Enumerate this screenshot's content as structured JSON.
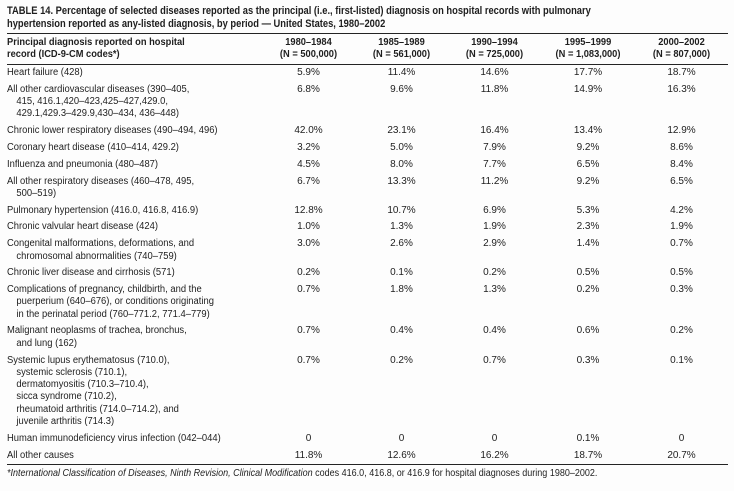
{
  "title_lines": [
    "TABLE 14. Percentage of selected diseases reported as the principal (i.e., first-listed) diagnosis on hospital records with pulmonary",
    "hypertension reported as any-listed diagnosis, by period — United States, 1980–2002"
  ],
  "header": {
    "diagnosis_lines": [
      "Principal diagnosis reported on hospital",
      "record (ICD-9-CM codes*)"
    ],
    "periods": [
      {
        "label": "1980–1984",
        "n": "(N = 500,000)"
      },
      {
        "label": "1985–1989",
        "n": "(N = 561,000)"
      },
      {
        "label": "1990–1994",
        "n": "(N = 725,000)"
      },
      {
        "label": "1995–1999",
        "n": "(N = 1,083,000)"
      },
      {
        "label": "2000–2002",
        "n": "(N = 807,000)"
      }
    ]
  },
  "table": {
    "rows": [
      {
        "label_lines": [
          "Heart failure (428)"
        ],
        "values": [
          "5.9%",
          "11.4%",
          "14.6%",
          "17.7%",
          "18.7%"
        ]
      },
      {
        "label_lines": [
          "All other cardiovascular diseases (390–405,",
          "415, 416.1,420–423,425–427,429.0,",
          "429.1,429.3–429.9,430–434, 436–448)"
        ],
        "values": [
          "6.8%",
          "9.6%",
          "11.8%",
          "14.9%",
          "16.3%"
        ]
      },
      {
        "label_lines": [
          "Chronic lower respiratory diseases (490–494, 496)"
        ],
        "values": [
          "42.0%",
          "23.1%",
          "16.4%",
          "13.4%",
          "12.9%"
        ]
      },
      {
        "label_lines": [
          "Coronary heart disease (410–414, 429.2)"
        ],
        "values": [
          "3.2%",
          "5.0%",
          "7.9%",
          "9.2%",
          "8.6%"
        ]
      },
      {
        "label_lines": [
          "Influenza and pneumonia (480–487)"
        ],
        "values": [
          "4.5%",
          "8.0%",
          "7.7%",
          "6.5%",
          "8.4%"
        ]
      },
      {
        "label_lines": [
          "All other respiratory diseases (460–478, 495,",
          "500–519)"
        ],
        "values": [
          "6.7%",
          "13.3%",
          "11.2%",
          "9.2%",
          "6.5%"
        ]
      },
      {
        "label_lines": [
          "Pulmonary hypertension (416.0, 416.8, 416.9)"
        ],
        "values": [
          "12.8%",
          "10.7%",
          "6.9%",
          "5.3%",
          "4.2%"
        ]
      },
      {
        "label_lines": [
          "Chronic valvular heart disease (424)"
        ],
        "values": [
          "1.0%",
          "1.3%",
          "1.9%",
          "2.3%",
          "1.9%"
        ]
      },
      {
        "label_lines": [
          "Congenital malformations, deformations, and",
          "chromosomal abnormalities (740–759)"
        ],
        "values": [
          "3.0%",
          "2.6%",
          "2.9%",
          "1.4%",
          "0.7%"
        ]
      },
      {
        "label_lines": [
          "Chronic liver disease and cirrhosis (571)"
        ],
        "values": [
          "0.2%",
          "0.1%",
          "0.2%",
          "0.5%",
          "0.5%"
        ]
      },
      {
        "label_lines": [
          "Complications of pregnancy, childbirth, and the",
          "puerperium (640–676), or conditions originating",
          "in the perinatal period (760–771.2, 771.4–779)"
        ],
        "values": [
          "0.7%",
          "1.8%",
          "1.3%",
          "0.2%",
          "0.3%"
        ]
      },
      {
        "label_lines": [
          "Malignant neoplasms of trachea, bronchus,",
          "and lung (162)"
        ],
        "values": [
          "0.7%",
          "0.4%",
          "0.4%",
          "0.6%",
          "0.2%"
        ]
      },
      {
        "label_lines": [
          "Systemic lupus erythematosus (710.0),",
          "systemic sclerosis (710.1),",
          "dermatomyositis (710.3–710.4),",
          "sicca syndrome (710.2),",
          "rheumatoid arthritis (714.0–714.2), and",
          "juvenile arthritis (714.3)"
        ],
        "values": [
          "0.7%",
          "0.2%",
          "0.7%",
          "0.3%",
          "0.1%"
        ]
      },
      {
        "label_lines": [
          "Human immunodeficiency virus infection (042–044)"
        ],
        "values": [
          "0",
          "0",
          "0",
          "0.1%",
          "0"
        ]
      },
      {
        "label_lines": [
          "All other causes"
        ],
        "values": [
          "11.8%",
          "12.6%",
          "16.2%",
          "18.7%",
          "20.7%"
        ]
      }
    ]
  },
  "footnote": {
    "italic": "*International Classification of Diseases, Ninth Revision, Clinical Modification",
    "rest": " codes 416.0, 416.8, or 416.9 for hospital diagnoses during 1980–2002."
  }
}
